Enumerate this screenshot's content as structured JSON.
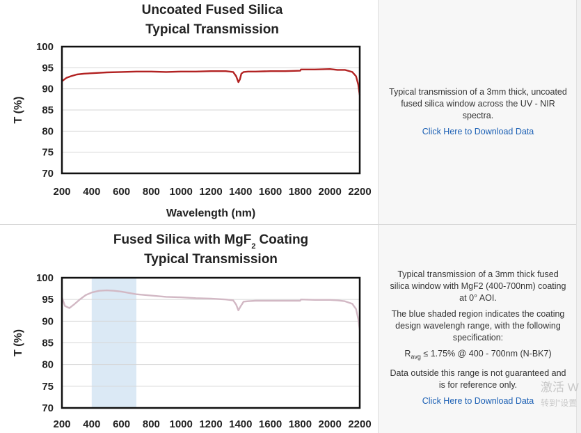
{
  "chart_data": [
    {
      "type": "line",
      "title": "Uncoated Fused Silica",
      "subtitle": "Typical Transmission",
      "xlabel": "Wavelength (nm)",
      "ylabel": "T (%)",
      "xlim": [
        200,
        2200
      ],
      "ylim": [
        70,
        100
      ],
      "xticks": [
        200,
        400,
        600,
        800,
        1000,
        1200,
        1400,
        1600,
        1800,
        2000,
        2200
      ],
      "yticks": [
        100,
        95,
        90,
        85,
        80,
        75,
        70
      ],
      "grid": true,
      "series": [
        {
          "color": "#b22222",
          "x": [
            200,
            230,
            260,
            300,
            350,
            400,
            500,
            600,
            700,
            800,
            900,
            1000,
            1100,
            1200,
            1300,
            1350,
            1370,
            1385,
            1395,
            1405,
            1420,
            1450,
            1500,
            1600,
            1700,
            1800,
            1805,
            1900,
            2000,
            2050,
            2100,
            2150,
            2175,
            2190,
            2200
          ],
          "y": [
            91.8,
            92.6,
            93.0,
            93.4,
            93.6,
            93.7,
            93.9,
            94.0,
            94.1,
            94.1,
            94.0,
            94.1,
            94.1,
            94.2,
            94.2,
            94.0,
            93.0,
            91.6,
            92.2,
            93.6,
            94.0,
            94.1,
            94.1,
            94.2,
            94.2,
            94.3,
            94.6,
            94.6,
            94.7,
            94.5,
            94.5,
            94.0,
            93.0,
            91.0,
            88.5
          ]
        }
      ]
    },
    {
      "type": "line",
      "title": "Fused Silica with MgF",
      "title_sub": "2",
      "title_suffix": "Coating",
      "subtitle": "Typical Transmission",
      "ylabel": "T (%)",
      "xlim": [
        200,
        2200
      ],
      "ylim": [
        70,
        100
      ],
      "xticks": [
        200,
        400,
        600,
        800,
        1000,
        1200,
        1400,
        1600,
        1800,
        2000,
        2200
      ],
      "yticks": [
        100,
        95,
        90,
        85,
        80,
        75,
        70
      ],
      "grid": true,
      "shaded_range": [
        400,
        700
      ],
      "shaded_color": "#dbe9f5",
      "series": [
        {
          "color": "#d2b8c4",
          "x": [
            200,
            220,
            250,
            280,
            320,
            360,
            400,
            450,
            500,
            550,
            600,
            700,
            800,
            900,
            1000,
            1100,
            1200,
            1300,
            1350,
            1370,
            1385,
            1400,
            1420,
            1450,
            1500,
            1600,
            1700,
            1800,
            1805,
            1900,
            2000,
            2050,
            2100,
            2150,
            2175,
            2190,
            2200
          ],
          "y": [
            95.5,
            93.5,
            93.0,
            93.8,
            95.0,
            96.0,
            96.6,
            97.0,
            97.1,
            97.0,
            96.8,
            96.2,
            95.9,
            95.6,
            95.5,
            95.3,
            95.2,
            95.0,
            94.8,
            93.8,
            92.5,
            93.4,
            94.5,
            94.6,
            94.7,
            94.7,
            94.7,
            94.7,
            95.0,
            94.9,
            94.9,
            94.8,
            94.6,
            94.0,
            92.8,
            90.5,
            88.0
          ]
        }
      ]
    }
  ],
  "panel1": {
    "description": "Typical transmission of a 3mm thick, uncoated fused silica window across the UV - NIR spectra.",
    "link": "Click Here to Download Data"
  },
  "panel2": {
    "description1": "Typical transmission of a 3mm thick fused silica window with MgF2 (400-700nm) coating at 0° AOI.",
    "description2": "The blue shaded region indicates the coating design wavelengh range, with the following specification:",
    "spec_r": "R",
    "spec_sub": "avg",
    "spec_rest": " ≤ 1.75% @ 400 - 700nm (N-BK7)",
    "description3": "Data outside this range is not guaranteed and is for reference only.",
    "link": "Click Here to Download Data"
  },
  "watermark": {
    "line1": "激活 W",
    "line2": "转到\"设置"
  }
}
